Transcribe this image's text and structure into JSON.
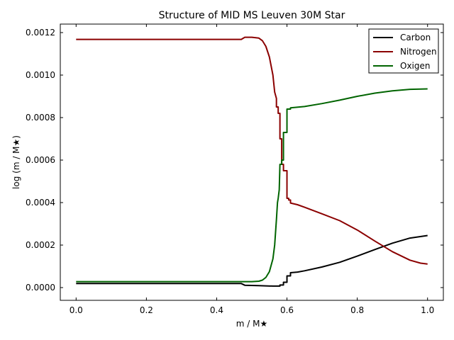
{
  "chart_data": {
    "type": "line",
    "title": "Structure of MID MS Leuven 30M Star",
    "xlabel": "m / M★",
    "ylabel": "log (m / M★)",
    "xlim": [
      -0.045,
      1.045
    ],
    "ylim": [
      -6e-05,
      0.00124
    ],
    "xticks": [
      "0.0",
      "0.2",
      "0.4",
      "0.6",
      "0.8",
      "1.0"
    ],
    "xtick_values": [
      0.0,
      0.2,
      0.4,
      0.6,
      0.8,
      1.0
    ],
    "yticks": [
      "0.0000",
      "0.0002",
      "0.0004",
      "0.0006",
      "0.0008",
      "0.0010",
      "0.0012"
    ],
    "ytick_values": [
      0.0,
      0.0002,
      0.0004,
      0.0006,
      0.0008,
      0.001,
      0.0012
    ],
    "grid": false,
    "legend_position": "top-right",
    "series": [
      {
        "name": "Carbon",
        "color": "#000000",
        "points": [
          [
            0.0,
            1.9e-05
          ],
          [
            0.47,
            1.9e-05
          ],
          [
            0.48,
            1.1e-05
          ],
          [
            0.5,
            1e-05
          ],
          [
            0.52,
            9e-06
          ],
          [
            0.54,
            8e-06
          ],
          [
            0.56,
            7e-06
          ],
          [
            0.58,
            7e-06
          ],
          [
            0.58,
            1.2e-05
          ],
          [
            0.59,
            1.2e-05
          ],
          [
            0.59,
            2.5e-05
          ],
          [
            0.6,
            2.5e-05
          ],
          [
            0.6,
            5.5e-05
          ],
          [
            0.61,
            5.5e-05
          ],
          [
            0.61,
            7e-05
          ],
          [
            0.63,
            7.3e-05
          ],
          [
            0.65,
            7.9e-05
          ],
          [
            0.7,
            9.7e-05
          ],
          [
            0.75,
            0.000119
          ],
          [
            0.8,
            0.000148
          ],
          [
            0.85,
            0.000179
          ],
          [
            0.9,
            0.000209
          ],
          [
            0.95,
            0.000233
          ],
          [
            1.0,
            0.000245
          ]
        ]
      },
      {
        "name": "Nitrogen",
        "color": "#8b0000",
        "points": [
          [
            0.0,
            0.001168
          ],
          [
            0.47,
            0.001168
          ],
          [
            0.48,
            0.001178
          ],
          [
            0.5,
            0.001178
          ],
          [
            0.52,
            0.001174
          ],
          [
            0.53,
            0.001162
          ],
          [
            0.54,
            0.001135
          ],
          [
            0.55,
            0.001085
          ],
          [
            0.56,
            0.001
          ],
          [
            0.565,
            0.00092
          ],
          [
            0.57,
            0.00089
          ],
          [
            0.57,
            0.00085
          ],
          [
            0.575,
            0.00085
          ],
          [
            0.575,
            0.00082
          ],
          [
            0.58,
            0.00082
          ],
          [
            0.58,
            0.0007
          ],
          [
            0.585,
            0.0007
          ],
          [
            0.585,
            0.00058
          ],
          [
            0.59,
            0.00058
          ],
          [
            0.59,
            0.00055
          ],
          [
            0.6,
            0.00055
          ],
          [
            0.6,
            0.00042
          ],
          [
            0.605,
            0.00042
          ],
          [
            0.605,
            0.000412
          ],
          [
            0.61,
            0.000412
          ],
          [
            0.61,
            0.000398
          ],
          [
            0.63,
            0.00039
          ],
          [
            0.65,
            0.000378
          ],
          [
            0.7,
            0.000347
          ],
          [
            0.75,
            0.000315
          ],
          [
            0.8,
            0.000271
          ],
          [
            0.85,
            0.000219
          ],
          [
            0.9,
            0.000169
          ],
          [
            0.95,
            0.000129
          ],
          [
            0.98,
            0.000115
          ],
          [
            1.0,
            0.000111
          ]
        ]
      },
      {
        "name": "Oxigen",
        "color": "#006400",
        "points": [
          [
            0.0,
            2.8e-05
          ],
          [
            0.5,
            2.8e-05
          ],
          [
            0.52,
            3e-05
          ],
          [
            0.53,
            3.5e-05
          ],
          [
            0.54,
            4.8e-05
          ],
          [
            0.55,
            7.5e-05
          ],
          [
            0.56,
            0.000135
          ],
          [
            0.565,
            0.0002
          ],
          [
            0.57,
            0.00032
          ],
          [
            0.573,
            0.0004
          ],
          [
            0.575,
            0.00042
          ],
          [
            0.578,
            0.00046
          ],
          [
            0.58,
            0.00058
          ],
          [
            0.585,
            0.00058
          ],
          [
            0.585,
            0.0006
          ],
          [
            0.59,
            0.0006
          ],
          [
            0.59,
            0.00073
          ],
          [
            0.6,
            0.00073
          ],
          [
            0.6,
            0.00084
          ],
          [
            0.61,
            0.00084
          ],
          [
            0.61,
            0.000846
          ],
          [
            0.65,
            0.000852
          ],
          [
            0.7,
            0.000866
          ],
          [
            0.75,
            0.000882
          ],
          [
            0.8,
            0.0009
          ],
          [
            0.85,
            0.000915
          ],
          [
            0.9,
            0.000926
          ],
          [
            0.95,
            0.000933
          ],
          [
            1.0,
            0.000935
          ]
        ]
      }
    ]
  }
}
